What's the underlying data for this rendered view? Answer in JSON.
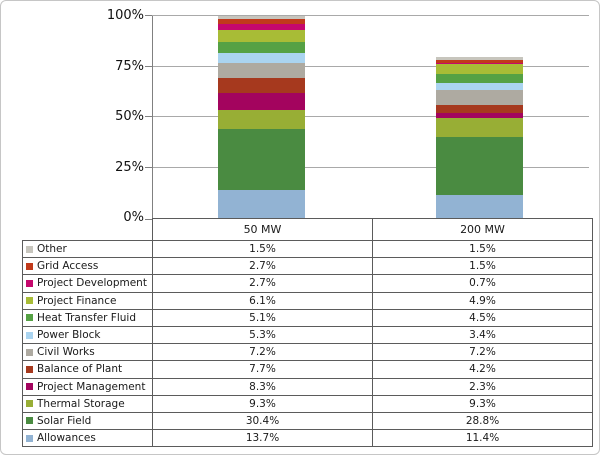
{
  "chart_data": {
    "type": "bar",
    "stacked": true,
    "title": "",
    "xlabel": "",
    "ylabel": "",
    "categories": [
      "50 MW",
      "200 MW"
    ],
    "series": [
      {
        "name": "Other",
        "color": "#C7C5BD",
        "values": [
          1.5,
          1.5
        ]
      },
      {
        "name": "Grid Access",
        "color": "#C13A1B",
        "values": [
          2.7,
          1.5
        ]
      },
      {
        "name": "Project Development",
        "color": "#C5086D",
        "values": [
          2.7,
          0.7
        ]
      },
      {
        "name": "Project Finance",
        "color": "#A8BC36",
        "values": [
          6.1,
          4.9
        ]
      },
      {
        "name": "Heat Transfer Fluid",
        "color": "#55A144",
        "values": [
          5.1,
          4.5
        ]
      },
      {
        "name": "Power Block",
        "color": "#AAD4F0",
        "values": [
          5.3,
          3.4
        ]
      },
      {
        "name": "Civil Works",
        "color": "#AEAAA1",
        "values": [
          7.2,
          7.2
        ]
      },
      {
        "name": "Balance of Plant",
        "color": "#A6391E",
        "values": [
          7.7,
          4.2
        ]
      },
      {
        "name": "Project Management",
        "color": "#A3045E",
        "values": [
          8.3,
          2.3
        ]
      },
      {
        "name": "Thermal Storage",
        "color": "#98AE35",
        "values": [
          9.3,
          9.3
        ]
      },
      {
        "name": "Solar Field",
        "color": "#4A8B41",
        "values": [
          30.4,
          28.8
        ]
      },
      {
        "name": "Allowances",
        "color": "#92B3D3",
        "values": [
          13.7,
          11.4
        ]
      }
    ],
    "displayed_values": {
      "50 MW": [
        "1.5%",
        "2.7%",
        "2.7%",
        "6.1%",
        "5.1%",
        "5.3%",
        "7.2%",
        "7.7%",
        "8.3%",
        "9.3%",
        "30.4%",
        "13.7%"
      ],
      "200 MW": [
        "1.5%",
        "1.5%",
        "0.7%",
        "4.9%",
        "4.5%",
        "3.4%",
        "7.2%",
        "4.2%",
        "2.3%",
        "9.3%",
        "28.8%",
        "11.4%"
      ]
    },
    "y_ticks": [
      "0%",
      "25%",
      "50%",
      "75%",
      "100%"
    ],
    "ylim": [
      0,
      100
    ],
    "grid": true,
    "stack_order": "first-series-on-top",
    "legend_position": "data-table-below-chart",
    "colors": {
      "axis_line": "#808080",
      "gridline": "#A9A9A9",
      "table_border": "#5B5B5B",
      "frame_border": "#C6C6C6"
    }
  }
}
